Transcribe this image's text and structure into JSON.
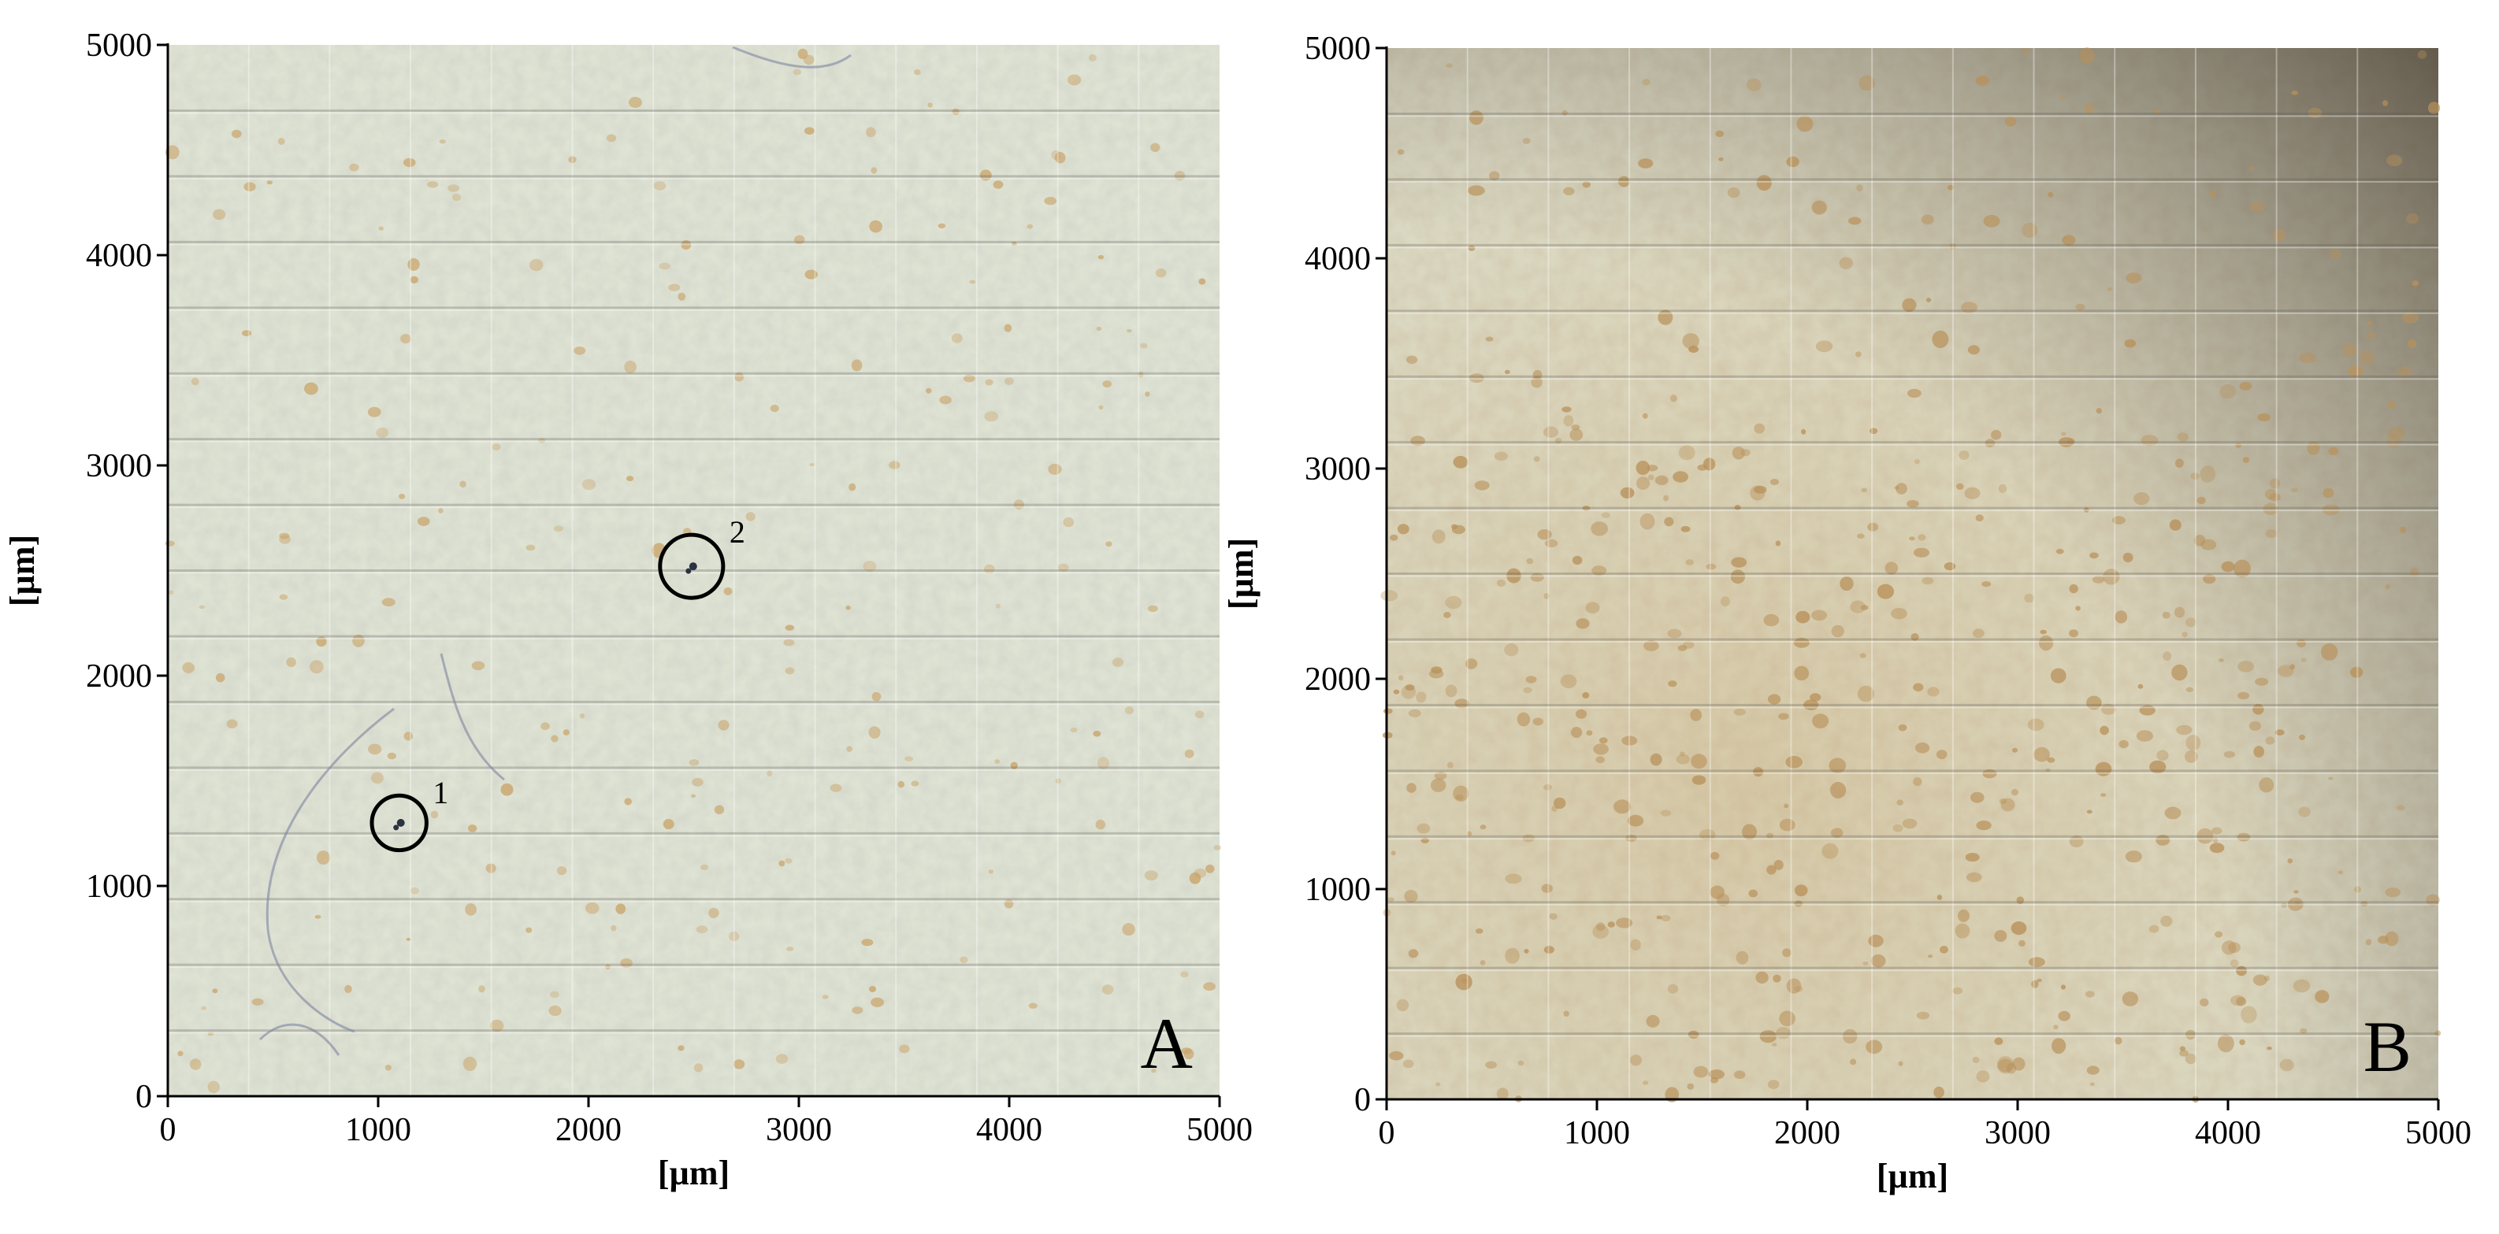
{
  "panels": [
    {
      "id": "A",
      "panel_letter": "A",
      "ylabel": "[µm]",
      "xlabel": "[µm]",
      "x_ticks": [
        "0",
        "1000",
        "2000",
        "3000",
        "4000",
        "5000"
      ],
      "y_ticks": [
        "0",
        "1000",
        "2000",
        "3000",
        "4000",
        "5000"
      ],
      "axis_range_um": [
        0,
        5000
      ],
      "markers": [
        {
          "label": "1",
          "x_um": 1100,
          "y_um": 1300,
          "r_um": 130
        },
        {
          "label": "2",
          "x_um": 2490,
          "y_um": 2520,
          "r_um": 150
        }
      ],
      "tile_grid": {
        "columns": 13,
        "rows": 16
      },
      "colors": {
        "background": "#dfe3d4",
        "particles": "#c9a46a"
      }
    },
    {
      "id": "B",
      "panel_letter": "B",
      "ylabel": "[µm]",
      "xlabel": "[µm]",
      "x_ticks": [
        "0",
        "1000",
        "2000",
        "3000",
        "4000",
        "5000"
      ],
      "y_ticks": [
        "0",
        "1000",
        "2000",
        "3000",
        "4000",
        "5000"
      ],
      "axis_range_um": [
        0,
        5000
      ],
      "markers": [],
      "tile_grid": {
        "columns": 13,
        "rows": 16
      },
      "colors": {
        "background": "#dcdcc8",
        "particles": "#b8915a",
        "vignette": "#6e6250"
      }
    }
  ]
}
